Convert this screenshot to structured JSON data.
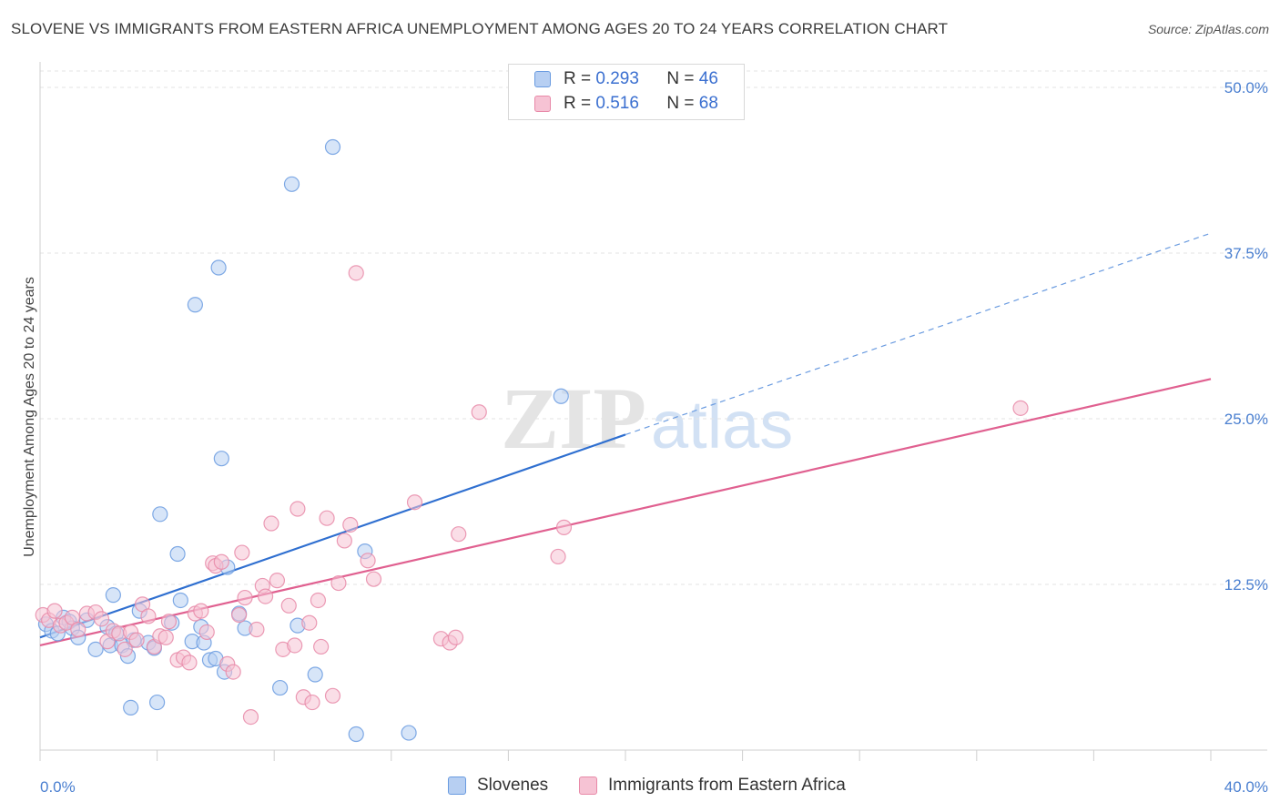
{
  "header": {
    "title": "SLOVENE VS IMMIGRANTS FROM EASTERN AFRICA UNEMPLOYMENT AMONG AGES 20 TO 24 YEARS CORRELATION CHART",
    "source": "Source: ZipAtlas.com"
  },
  "legend": {
    "rows": [
      {
        "r_label": "R =",
        "r_value": "0.293",
        "n_label": "N =",
        "n_value": "46"
      },
      {
        "r_label": "R =",
        "r_value": "0.516",
        "n_label": "N =",
        "n_value": "68"
      }
    ]
  },
  "watermark": {
    "zip": "ZIP",
    "atlas": "atlas"
  },
  "chart_data": {
    "type": "scatter",
    "xlabel": "",
    "ylabel": "Unemployment Among Ages 20 to 24 years",
    "xlim": [
      0,
      40
    ],
    "ylim": [
      0,
      50
    ],
    "x_tick_labels": [
      {
        "value": 0,
        "label": "0.0%"
      },
      {
        "value": 40,
        "label": "40.0%"
      }
    ],
    "y_tick_labels": [
      {
        "value": 12.5,
        "label": "12.5%"
      },
      {
        "value": 25,
        "label": "25.0%"
      },
      {
        "value": 37.5,
        "label": "37.5%"
      },
      {
        "value": 50,
        "label": "50.0%"
      }
    ],
    "grid": true,
    "legend_position": "top-center",
    "series": [
      {
        "name": "Slovenes",
        "color": "#6a9be0",
        "fill": "#b7cff2",
        "r": 0.293,
        "n": 46,
        "trend": {
          "x0": 0,
          "y0": 8.5,
          "x1": 20,
          "y1": 23.8,
          "dashed_to_x": 40,
          "dashed_to_y": 39.0
        },
        "points": [
          [
            0.2,
            9.5
          ],
          [
            0.4,
            9.0
          ],
          [
            0.6,
            8.8
          ],
          [
            0.8,
            10.0
          ],
          [
            1.0,
            9.7
          ],
          [
            1.1,
            9.2
          ],
          [
            1.3,
            8.5
          ],
          [
            1.6,
            9.8
          ],
          [
            1.9,
            7.6
          ],
          [
            2.3,
            9.3
          ],
          [
            2.4,
            7.9
          ],
          [
            2.5,
            11.7
          ],
          [
            2.6,
            8.8
          ],
          [
            2.8,
            7.9
          ],
          [
            3.0,
            7.1
          ],
          [
            3.1,
            3.2
          ],
          [
            3.2,
            8.3
          ],
          [
            3.4,
            10.5
          ],
          [
            3.7,
            8.1
          ],
          [
            3.9,
            7.7
          ],
          [
            4.0,
            3.6
          ],
          [
            4.1,
            17.8
          ],
          [
            4.5,
            9.6
          ],
          [
            4.7,
            14.8
          ],
          [
            4.8,
            11.3
          ],
          [
            5.2,
            8.2
          ],
          [
            5.3,
            33.6
          ],
          [
            5.5,
            9.3
          ],
          [
            5.6,
            8.1
          ],
          [
            5.8,
            6.8
          ],
          [
            6.0,
            6.9
          ],
          [
            6.1,
            36.4
          ],
          [
            6.3,
            5.9
          ],
          [
            6.2,
            22.0
          ],
          [
            6.4,
            13.8
          ],
          [
            6.8,
            10.3
          ],
          [
            7.0,
            9.2
          ],
          [
            8.2,
            4.7
          ],
          [
            8.6,
            42.7
          ],
          [
            8.8,
            9.4
          ],
          [
            9.4,
            5.7
          ],
          [
            10.0,
            45.5
          ],
          [
            10.8,
            1.2
          ],
          [
            11.1,
            15.0
          ],
          [
            12.6,
            1.3
          ],
          [
            17.8,
            26.7
          ]
        ]
      },
      {
        "name": "Immigrants from Eastern Africa",
        "color": "#e889a8",
        "fill": "#f6c3d4",
        "r": 0.516,
        "n": 68,
        "trend": {
          "x0": 0,
          "y0": 7.9,
          "x1": 40,
          "y1": 28.0
        },
        "points": [
          [
            0.1,
            10.2
          ],
          [
            0.3,
            9.8
          ],
          [
            0.5,
            10.5
          ],
          [
            0.7,
            9.4
          ],
          [
            0.9,
            9.6
          ],
          [
            1.1,
            10.0
          ],
          [
            1.3,
            9.1
          ],
          [
            1.6,
            10.3
          ],
          [
            1.9,
            10.4
          ],
          [
            2.1,
            9.9
          ],
          [
            2.3,
            8.2
          ],
          [
            2.5,
            9.0
          ],
          [
            2.7,
            8.8
          ],
          [
            2.9,
            7.6
          ],
          [
            3.1,
            8.9
          ],
          [
            3.3,
            8.3
          ],
          [
            3.5,
            11.0
          ],
          [
            3.7,
            10.1
          ],
          [
            3.9,
            7.8
          ],
          [
            4.1,
            8.6
          ],
          [
            4.3,
            8.5
          ],
          [
            4.4,
            9.7
          ],
          [
            4.7,
            6.8
          ],
          [
            4.9,
            7.0
          ],
          [
            5.1,
            6.6
          ],
          [
            5.3,
            10.3
          ],
          [
            5.5,
            10.5
          ],
          [
            5.7,
            8.9
          ],
          [
            5.9,
            14.1
          ],
          [
            6.0,
            13.9
          ],
          [
            6.2,
            14.2
          ],
          [
            6.4,
            6.5
          ],
          [
            6.6,
            5.9
          ],
          [
            6.8,
            10.2
          ],
          [
            6.9,
            14.9
          ],
          [
            7.0,
            11.5
          ],
          [
            7.2,
            2.5
          ],
          [
            7.4,
            9.1
          ],
          [
            7.6,
            12.4
          ],
          [
            7.7,
            11.6
          ],
          [
            7.9,
            17.1
          ],
          [
            8.1,
            12.8
          ],
          [
            8.3,
            7.6
          ],
          [
            8.5,
            10.9
          ],
          [
            8.7,
            7.9
          ],
          [
            8.8,
            18.2
          ],
          [
            9.0,
            4.0
          ],
          [
            9.2,
            9.6
          ],
          [
            9.3,
            3.6
          ],
          [
            9.5,
            11.3
          ],
          [
            9.6,
            7.8
          ],
          [
            9.8,
            17.5
          ],
          [
            10.0,
            4.1
          ],
          [
            10.2,
            12.6
          ],
          [
            10.4,
            15.8
          ],
          [
            10.6,
            17.0
          ],
          [
            10.8,
            36.0
          ],
          [
            11.2,
            14.3
          ],
          [
            11.4,
            12.9
          ],
          [
            12.8,
            18.7
          ],
          [
            13.7,
            8.4
          ],
          [
            14.0,
            8.1
          ],
          [
            14.2,
            8.5
          ],
          [
            14.3,
            16.3
          ],
          [
            15.0,
            25.5
          ],
          [
            17.7,
            14.6
          ],
          [
            17.9,
            16.8
          ],
          [
            33.5,
            25.8
          ]
        ]
      }
    ]
  }
}
